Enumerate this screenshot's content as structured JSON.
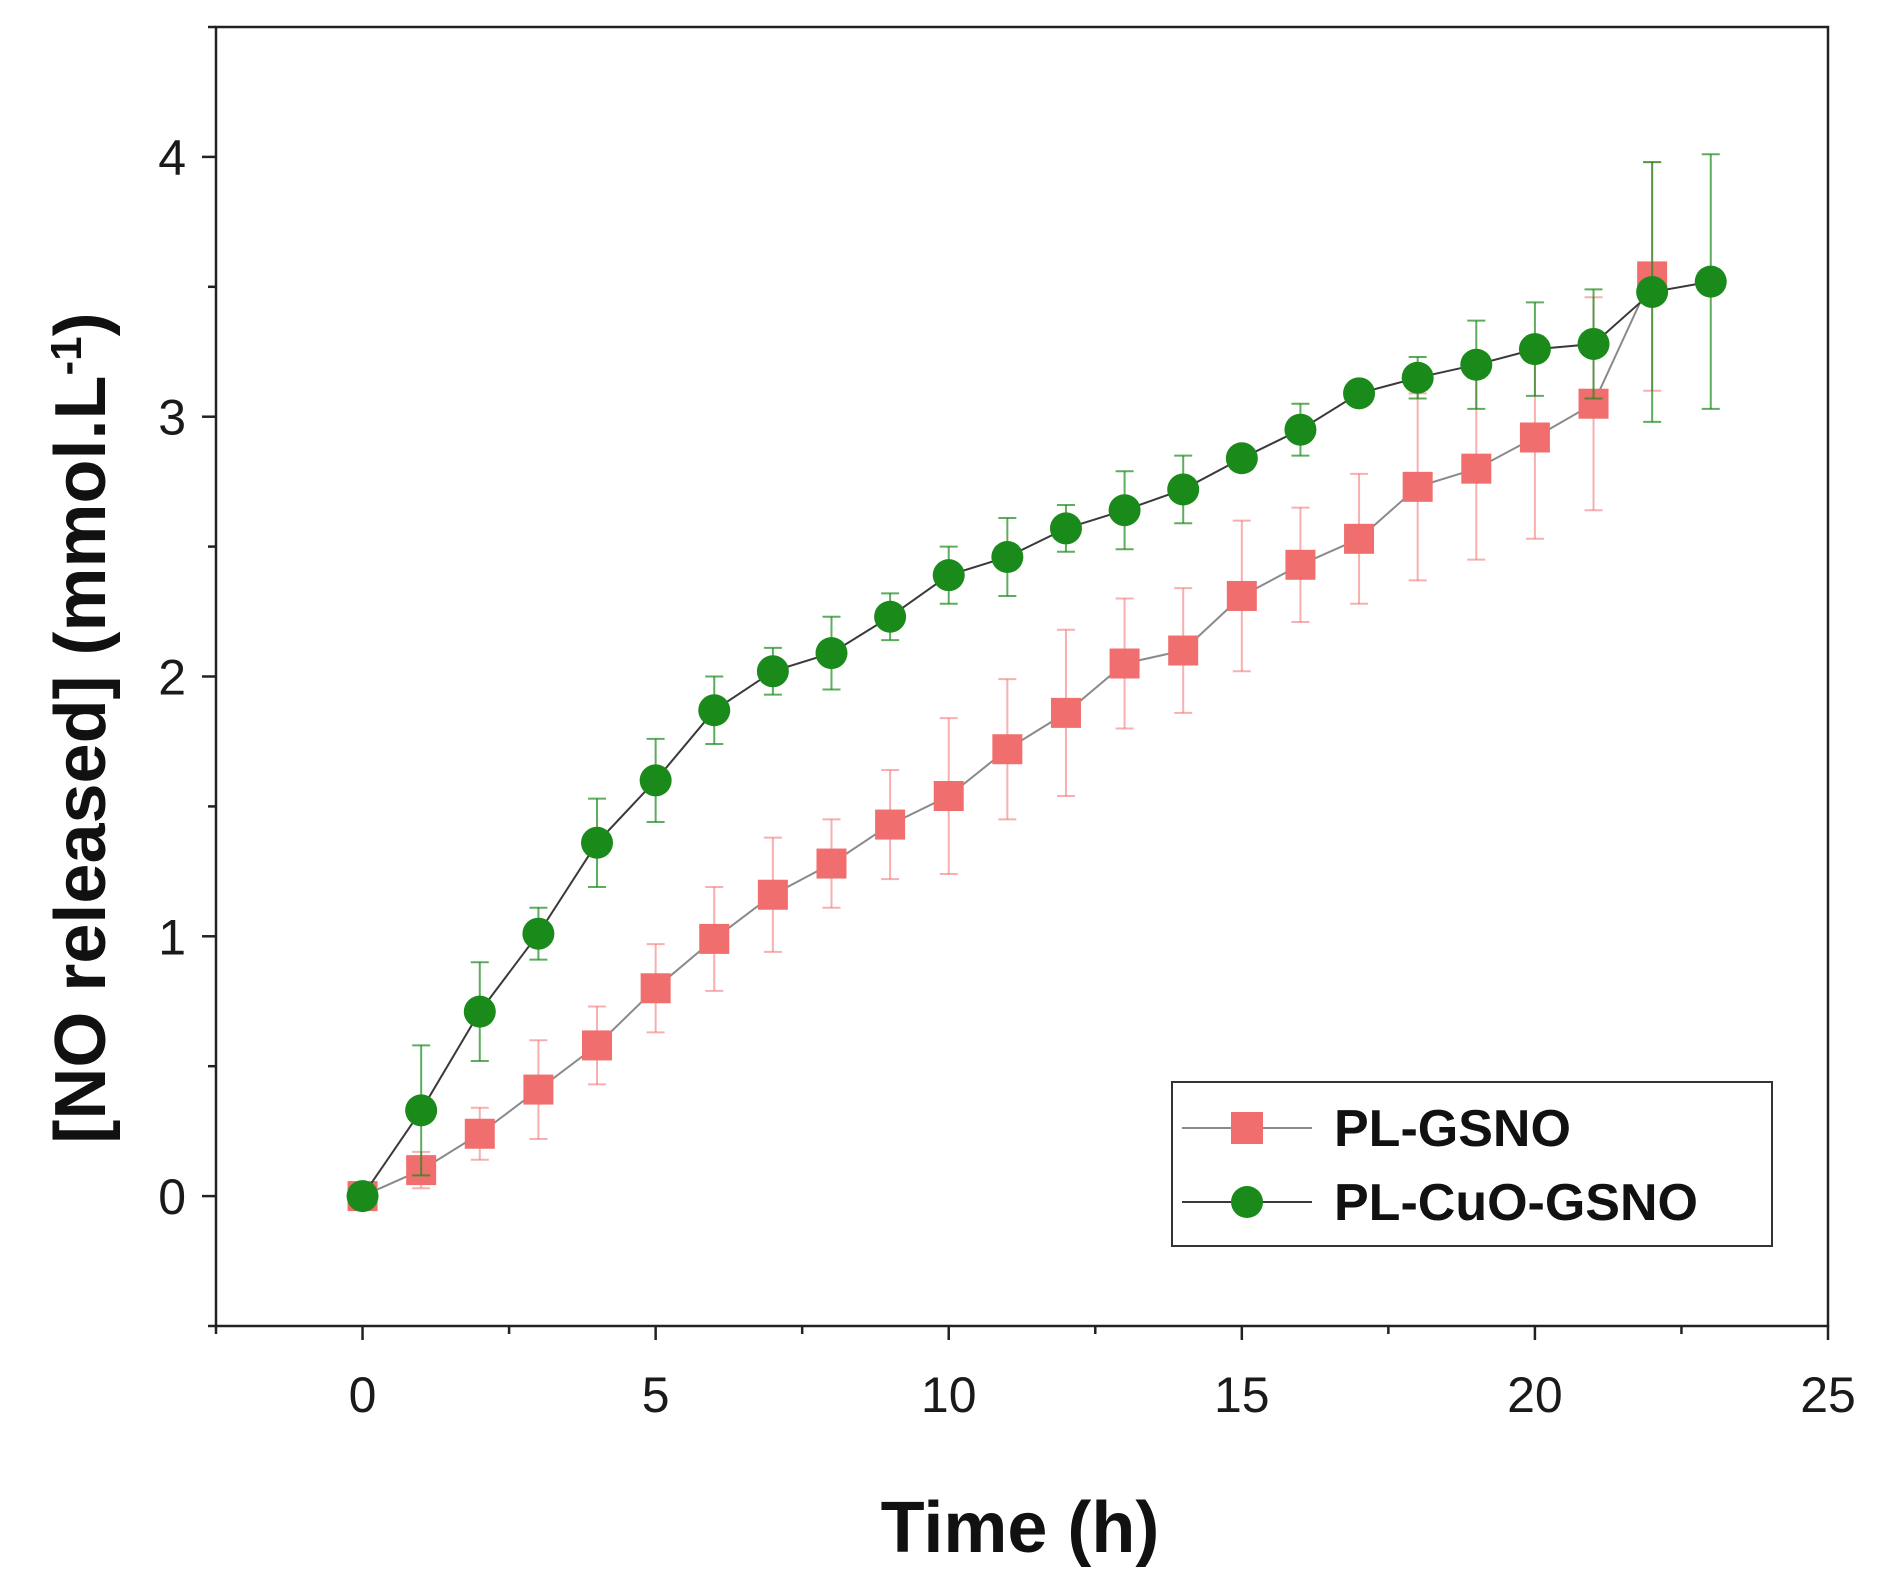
{
  "chart_data": {
    "type": "line",
    "title": "",
    "xlabel": "Time (h)",
    "ylabel_main": "[NO released] (mmol.L",
    "ylabel_sup": "-1",
    "ylabel_close": ")",
    "xlim": [
      -2.5,
      25
    ],
    "ylim": [
      -0.5,
      4.5
    ],
    "x_ticks": [
      0,
      5,
      10,
      15,
      20,
      25
    ],
    "x_tick_labels": [
      "0",
      "5",
      "10",
      "15",
      "20",
      "25"
    ],
    "y_ticks": [
      0,
      1,
      2,
      3,
      4
    ],
    "y_tick_labels": [
      "0",
      "1",
      "2",
      "3",
      "4"
    ],
    "legend_position": "bottom-right",
    "series": [
      {
        "name": "PL-GSNO",
        "marker": "square",
        "color": "#f06e6e",
        "line_color": "#8a8a8a",
        "x": [
          0,
          1,
          2,
          3,
          4,
          5,
          6,
          7,
          8,
          9,
          10,
          11,
          12,
          13,
          14,
          15,
          16,
          17,
          18,
          19,
          20,
          21,
          22
        ],
        "y": [
          0,
          0.1,
          0.24,
          0.41,
          0.58,
          0.8,
          0.99,
          1.16,
          1.28,
          1.43,
          1.54,
          1.72,
          1.86,
          2.05,
          2.1,
          2.31,
          2.43,
          2.53,
          2.73,
          2.8,
          2.92,
          3.05,
          3.54
        ],
        "err": [
          0,
          0.07,
          0.1,
          0.19,
          0.15,
          0.17,
          0.2,
          0.22,
          0.17,
          0.21,
          0.3,
          0.27,
          0.32,
          0.25,
          0.24,
          0.29,
          0.22,
          0.25,
          0.36,
          0.35,
          0.39,
          0.41,
          0.44
        ]
      },
      {
        "name": "PL-CuO-GSNO",
        "marker": "circle",
        "color": "#1a8a1a",
        "line_color": "#3a3a3a",
        "x": [
          0,
          1,
          2,
          3,
          4,
          5,
          6,
          7,
          8,
          9,
          10,
          11,
          12,
          13,
          14,
          15,
          16,
          17,
          18,
          19,
          20,
          21,
          22,
          23
        ],
        "y": [
          0,
          0.33,
          0.71,
          1.01,
          1.36,
          1.6,
          1.87,
          2.02,
          2.09,
          2.23,
          2.39,
          2.46,
          2.57,
          2.64,
          2.72,
          2.84,
          2.95,
          3.09,
          3.15,
          3.2,
          3.26,
          3.28,
          3.48,
          3.52
        ],
        "err": [
          0,
          0.25,
          0.19,
          0.1,
          0.17,
          0.16,
          0.13,
          0.09,
          0.14,
          0.09,
          0.11,
          0.15,
          0.09,
          0.15,
          0.13,
          0.04,
          0.1,
          0.03,
          0.08,
          0.17,
          0.18,
          0.21,
          0.5,
          0.49
        ]
      }
    ]
  }
}
